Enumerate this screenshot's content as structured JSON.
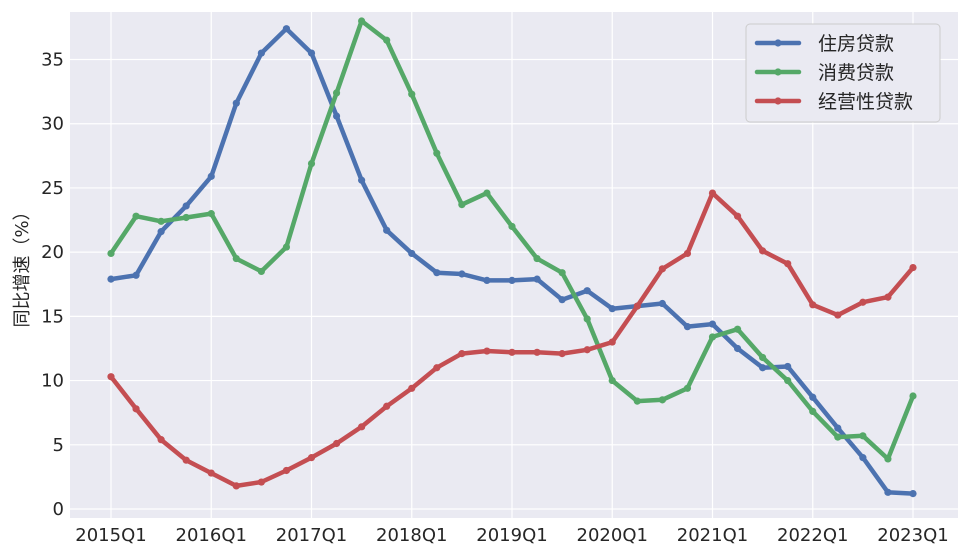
{
  "chart_data": {
    "type": "line",
    "title": "",
    "xlabel": "",
    "ylabel": "同比增速（%）",
    "x": [
      "2015Q1",
      "2015Q2",
      "2015Q3",
      "2015Q4",
      "2016Q1",
      "2016Q2",
      "2016Q3",
      "2016Q4",
      "2017Q1",
      "2017Q2",
      "2017Q3",
      "2017Q4",
      "2018Q1",
      "2018Q2",
      "2018Q3",
      "2018Q4",
      "2019Q1",
      "2019Q2",
      "2019Q3",
      "2019Q4",
      "2020Q1",
      "2020Q2",
      "2020Q3",
      "2020Q4",
      "2021Q1",
      "2021Q2",
      "2021Q3",
      "2021Q4",
      "2022Q1",
      "2022Q2",
      "2022Q3",
      "2022Q4",
      "2023Q1"
    ],
    "xticks": [
      "2015Q1",
      "2016Q1",
      "2017Q1",
      "2018Q1",
      "2019Q1",
      "2020Q1",
      "2021Q1",
      "2022Q1",
      "2023Q1"
    ],
    "ylim": [
      -0.7,
      38.7
    ],
    "yticks": [
      0,
      5,
      10,
      15,
      20,
      25,
      30,
      35
    ],
    "grid": true,
    "legend_position": "top-right",
    "series": [
      {
        "name": "住房贷款",
        "color": "#4c72b0",
        "values": [
          17.9,
          18.2,
          21.6,
          23.6,
          25.9,
          31.6,
          35.5,
          37.4,
          35.5,
          30.6,
          25.6,
          21.7,
          19.9,
          18.4,
          18.3,
          17.8,
          17.8,
          17.9,
          16.3,
          17.0,
          15.6,
          15.8,
          16.0,
          14.2,
          14.4,
          12.5,
          11.0,
          11.1,
          8.7,
          6.3,
          4.0,
          1.3,
          1.2
        ]
      },
      {
        "name": "消费贷款",
        "color": "#55a868",
        "values": [
          19.9,
          22.8,
          22.4,
          22.7,
          23.0,
          19.5,
          18.5,
          20.4,
          26.9,
          32.4,
          38.0,
          36.5,
          32.3,
          27.7,
          23.7,
          24.6,
          22.0,
          19.5,
          18.4,
          14.8,
          10.0,
          8.4,
          8.5,
          9.4,
          13.4,
          14.0,
          11.8,
          10.0,
          7.6,
          5.6,
          5.7,
          3.9,
          8.8
        ]
      },
      {
        "name": "经营性贷款",
        "color": "#c44e52",
        "values": [
          10.3,
          7.8,
          5.4,
          3.8,
          2.8,
          1.8,
          2.1,
          3.0,
          4.0,
          5.1,
          6.4,
          8.0,
          9.4,
          11.0,
          12.1,
          12.3,
          12.2,
          12.2,
          12.1,
          12.4,
          13.0,
          15.8,
          18.7,
          19.9,
          24.6,
          22.8,
          20.1,
          19.1,
          15.9,
          15.1,
          16.1,
          16.5,
          18.8
        ]
      }
    ]
  }
}
